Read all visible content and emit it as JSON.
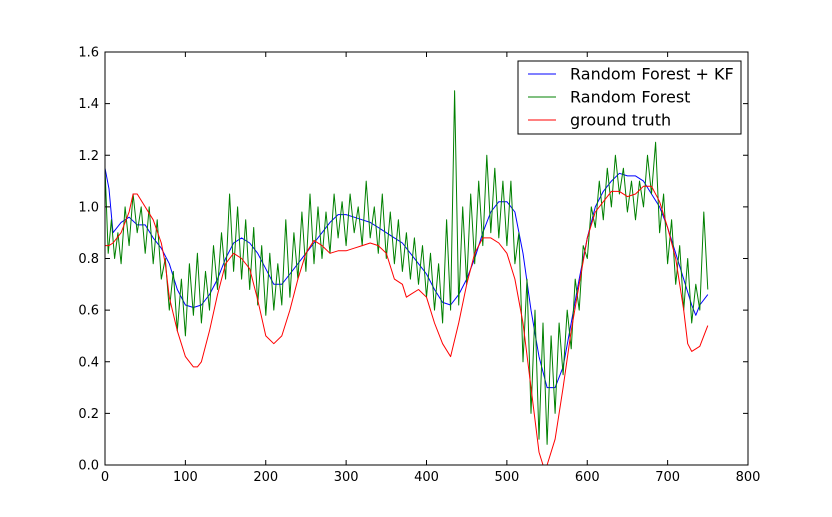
{
  "chart_data": {
    "type": "line",
    "title": "",
    "xlabel": "",
    "ylabel": "",
    "xlim": [
      0,
      800
    ],
    "ylim": [
      0.0,
      1.6
    ],
    "x_ticks": [
      "0",
      "100",
      "200",
      "300",
      "400",
      "500",
      "600",
      "700",
      "800"
    ],
    "y_ticks": [
      "0.0",
      "0.2",
      "0.4",
      "0.6",
      "0.8",
      "1.0",
      "1.2",
      "1.4",
      "1.6"
    ],
    "grid": false,
    "legend_position": "top-right",
    "series": [
      {
        "name": "Random Forest + KF",
        "color": "#0000ff",
        "points": [
          [
            0,
            1.15
          ],
          [
            5,
            1.07
          ],
          [
            10,
            0.9
          ],
          [
            20,
            0.94
          ],
          [
            30,
            0.96
          ],
          [
            40,
            0.93
          ],
          [
            50,
            0.93
          ],
          [
            60,
            0.88
          ],
          [
            70,
            0.84
          ],
          [
            80,
            0.78
          ],
          [
            90,
            0.68
          ],
          [
            100,
            0.62
          ],
          [
            110,
            0.61
          ],
          [
            120,
            0.62
          ],
          [
            130,
            0.66
          ],
          [
            140,
            0.72
          ],
          [
            150,
            0.8
          ],
          [
            160,
            0.86
          ],
          [
            170,
            0.88
          ],
          [
            180,
            0.86
          ],
          [
            190,
            0.82
          ],
          [
            200,
            0.76
          ],
          [
            210,
            0.7
          ],
          [
            220,
            0.7
          ],
          [
            230,
            0.74
          ],
          [
            240,
            0.78
          ],
          [
            250,
            0.82
          ],
          [
            260,
            0.86
          ],
          [
            270,
            0.9
          ],
          [
            280,
            0.94
          ],
          [
            290,
            0.97
          ],
          [
            300,
            0.97
          ],
          [
            310,
            0.96
          ],
          [
            320,
            0.95
          ],
          [
            330,
            0.94
          ],
          [
            340,
            0.92
          ],
          [
            350,
            0.9
          ],
          [
            360,
            0.88
          ],
          [
            370,
            0.86
          ],
          [
            380,
            0.82
          ],
          [
            390,
            0.78
          ],
          [
            400,
            0.74
          ],
          [
            410,
            0.68
          ],
          [
            420,
            0.63
          ],
          [
            430,
            0.62
          ],
          [
            440,
            0.66
          ],
          [
            450,
            0.72
          ],
          [
            460,
            0.8
          ],
          [
            470,
            0.9
          ],
          [
            480,
            0.98
          ],
          [
            490,
            1.02
          ],
          [
            500,
            1.02
          ],
          [
            510,
            0.98
          ],
          [
            520,
            0.82
          ],
          [
            530,
            0.6
          ],
          [
            540,
            0.42
          ],
          [
            550,
            0.3
          ],
          [
            560,
            0.3
          ],
          [
            570,
            0.38
          ],
          [
            580,
            0.55
          ],
          [
            590,
            0.72
          ],
          [
            600,
            0.88
          ],
          [
            610,
            1.0
          ],
          [
            620,
            1.06
          ],
          [
            630,
            1.1
          ],
          [
            640,
            1.13
          ],
          [
            650,
            1.12
          ],
          [
            660,
            1.12
          ],
          [
            670,
            1.1
          ],
          [
            680,
            1.05
          ],
          [
            690,
            1.0
          ],
          [
            700,
            0.92
          ],
          [
            710,
            0.82
          ],
          [
            720,
            0.72
          ],
          [
            730,
            0.62
          ],
          [
            735,
            0.58
          ],
          [
            740,
            0.62
          ],
          [
            750,
            0.66
          ]
        ]
      },
      {
        "name": "Random Forest",
        "color": "#008000",
        "points": [
          [
            0,
            1.15
          ],
          [
            4,
            0.82
          ],
          [
            8,
            0.95
          ],
          [
            12,
            0.8
          ],
          [
            16,
            0.9
          ],
          [
            20,
            0.78
          ],
          [
            25,
            1.0
          ],
          [
            30,
            0.85
          ],
          [
            35,
            1.05
          ],
          [
            40,
            0.9
          ],
          [
            45,
            1.0
          ],
          [
            50,
            0.82
          ],
          [
            55,
            1.0
          ],
          [
            60,
            0.78
          ],
          [
            65,
            0.95
          ],
          [
            70,
            0.72
          ],
          [
            75,
            0.8
          ],
          [
            80,
            0.6
          ],
          [
            85,
            0.75
          ],
          [
            90,
            0.52
          ],
          [
            95,
            0.72
          ],
          [
            100,
            0.5
          ],
          [
            105,
            0.78
          ],
          [
            110,
            0.58
          ],
          [
            115,
            0.82
          ],
          [
            120,
            0.55
          ],
          [
            125,
            0.75
          ],
          [
            130,
            0.6
          ],
          [
            135,
            0.85
          ],
          [
            140,
            0.68
          ],
          [
            145,
            0.9
          ],
          [
            150,
            0.72
          ],
          [
            155,
            1.05
          ],
          [
            160,
            0.75
          ],
          [
            165,
            1.0
          ],
          [
            170,
            0.72
          ],
          [
            175,
            0.95
          ],
          [
            180,
            0.68
          ],
          [
            185,
            0.92
          ],
          [
            190,
            0.62
          ],
          [
            195,
            0.85
          ],
          [
            200,
            0.58
          ],
          [
            205,
            0.82
          ],
          [
            210,
            0.6
          ],
          [
            215,
            0.78
          ],
          [
            220,
            0.62
          ],
          [
            225,
            0.95
          ],
          [
            230,
            0.65
          ],
          [
            235,
            0.9
          ],
          [
            240,
            0.72
          ],
          [
            245,
            0.98
          ],
          [
            250,
            0.75
          ],
          [
            255,
            1.05
          ],
          [
            260,
            0.78
          ],
          [
            265,
            1.0
          ],
          [
            270,
            0.8
          ],
          [
            275,
            0.98
          ],
          [
            280,
            0.82
          ],
          [
            285,
            1.05
          ],
          [
            290,
            0.88
          ],
          [
            295,
            1.02
          ],
          [
            300,
            0.85
          ],
          [
            305,
            1.05
          ],
          [
            310,
            0.9
          ],
          [
            315,
            1.0
          ],
          [
            320,
            0.85
          ],
          [
            325,
            1.1
          ],
          [
            330,
            0.88
          ],
          [
            335,
            1.0
          ],
          [
            340,
            0.82
          ],
          [
            345,
            1.05
          ],
          [
            350,
            0.8
          ],
          [
            355,
            0.98
          ],
          [
            360,
            0.78
          ],
          [
            365,
            0.95
          ],
          [
            370,
            0.75
          ],
          [
            375,
            0.9
          ],
          [
            380,
            0.72
          ],
          [
            385,
            0.88
          ],
          [
            390,
            0.7
          ],
          [
            395,
            0.85
          ],
          [
            400,
            0.65
          ],
          [
            405,
            0.82
          ],
          [
            410,
            0.6
          ],
          [
            415,
            0.78
          ],
          [
            420,
            0.55
          ],
          [
            425,
            0.95
          ],
          [
            430,
            0.6
          ],
          [
            435,
            1.45
          ],
          [
            440,
            0.62
          ],
          [
            445,
            1.0
          ],
          [
            450,
            0.7
          ],
          [
            455,
            1.05
          ],
          [
            460,
            0.78
          ],
          [
            465,
            1.1
          ],
          [
            470,
            0.85
          ],
          [
            475,
            1.2
          ],
          [
            480,
            0.9
          ],
          [
            485,
            1.15
          ],
          [
            490,
            0.88
          ],
          [
            495,
            1.1
          ],
          [
            500,
            0.85
          ],
          [
            505,
            1.1
          ],
          [
            510,
            0.78
          ],
          [
            515,
            0.9
          ],
          [
            520,
            0.4
          ],
          [
            525,
            0.72
          ],
          [
            530,
            0.2
          ],
          [
            535,
            0.6
          ],
          [
            540,
            0.1
          ],
          [
            545,
            0.55
          ],
          [
            550,
            0.08
          ],
          [
            555,
            0.5
          ],
          [
            560,
            0.2
          ],
          [
            565,
            0.55
          ],
          [
            570,
            0.35
          ],
          [
            575,
            0.6
          ],
          [
            580,
            0.45
          ],
          [
            585,
            0.72
          ],
          [
            590,
            0.6
          ],
          [
            595,
            0.85
          ],
          [
            600,
            0.8
          ],
          [
            605,
            1.0
          ],
          [
            610,
            0.92
          ],
          [
            615,
            1.1
          ],
          [
            620,
            0.95
          ],
          [
            625,
            1.15
          ],
          [
            630,
            1.0
          ],
          [
            635,
            1.2
          ],
          [
            640,
            1.05
          ],
          [
            645,
            1.15
          ],
          [
            650,
            0.98
          ],
          [
            655,
            1.1
          ],
          [
            660,
            0.95
          ],
          [
            665,
            1.1
          ],
          [
            670,
            1.0
          ],
          [
            675,
            1.2
          ],
          [
            680,
            1.05
          ],
          [
            685,
            1.25
          ],
          [
            690,
            0.9
          ],
          [
            695,
            1.05
          ],
          [
            700,
            0.78
          ],
          [
            705,
            0.95
          ],
          [
            710,
            0.7
          ],
          [
            715,
            0.85
          ],
          [
            720,
            0.6
          ],
          [
            725,
            0.8
          ],
          [
            730,
            0.55
          ],
          [
            735,
            0.7
          ],
          [
            740,
            0.6
          ],
          [
            745,
            0.98
          ],
          [
            750,
            0.68
          ]
        ]
      },
      {
        "name": "ground truth",
        "color": "#ff0000",
        "points": [
          [
            0,
            0.85
          ],
          [
            5,
            0.85
          ],
          [
            10,
            0.86
          ],
          [
            20,
            0.9
          ],
          [
            30,
            0.98
          ],
          [
            35,
            1.05
          ],
          [
            40,
            1.05
          ],
          [
            50,
            1.0
          ],
          [
            60,
            0.95
          ],
          [
            70,
            0.86
          ],
          [
            75,
            0.78
          ],
          [
            80,
            0.65
          ],
          [
            90,
            0.52
          ],
          [
            100,
            0.42
          ],
          [
            110,
            0.38
          ],
          [
            115,
            0.38
          ],
          [
            120,
            0.4
          ],
          [
            130,
            0.52
          ],
          [
            140,
            0.66
          ],
          [
            150,
            0.78
          ],
          [
            160,
            0.82
          ],
          [
            170,
            0.8
          ],
          [
            180,
            0.76
          ],
          [
            190,
            0.64
          ],
          [
            200,
            0.5
          ],
          [
            210,
            0.47
          ],
          [
            220,
            0.5
          ],
          [
            230,
            0.6
          ],
          [
            240,
            0.72
          ],
          [
            250,
            0.82
          ],
          [
            260,
            0.87
          ],
          [
            270,
            0.85
          ],
          [
            280,
            0.82
          ],
          [
            290,
            0.83
          ],
          [
            300,
            0.83
          ],
          [
            310,
            0.84
          ],
          [
            320,
            0.85
          ],
          [
            330,
            0.86
          ],
          [
            340,
            0.85
          ],
          [
            350,
            0.82
          ],
          [
            360,
            0.72
          ],
          [
            370,
            0.7
          ],
          [
            375,
            0.65
          ],
          [
            380,
            0.66
          ],
          [
            390,
            0.68
          ],
          [
            400,
            0.65
          ],
          [
            410,
            0.55
          ],
          [
            420,
            0.47
          ],
          [
            430,
            0.42
          ],
          [
            440,
            0.55
          ],
          [
            450,
            0.7
          ],
          [
            460,
            0.82
          ],
          [
            470,
            0.88
          ],
          [
            480,
            0.88
          ],
          [
            490,
            0.86
          ],
          [
            500,
            0.82
          ],
          [
            510,
            0.72
          ],
          [
            520,
            0.55
          ],
          [
            530,
            0.3
          ],
          [
            540,
            0.05
          ],
          [
            545,
            0.0
          ],
          [
            550,
            0.0
          ],
          [
            560,
            0.1
          ],
          [
            570,
            0.3
          ],
          [
            580,
            0.52
          ],
          [
            590,
            0.7
          ],
          [
            600,
            0.88
          ],
          [
            610,
            0.98
          ],
          [
            620,
            1.02
          ],
          [
            630,
            1.06
          ],
          [
            640,
            1.06
          ],
          [
            650,
            1.04
          ],
          [
            660,
            1.05
          ],
          [
            670,
            1.08
          ],
          [
            680,
            1.08
          ],
          [
            690,
            1.02
          ],
          [
            700,
            0.92
          ],
          [
            710,
            0.8
          ],
          [
            720,
            0.6
          ],
          [
            725,
            0.47
          ],
          [
            730,
            0.44
          ],
          [
            740,
            0.46
          ],
          [
            750,
            0.54
          ]
        ]
      }
    ]
  }
}
